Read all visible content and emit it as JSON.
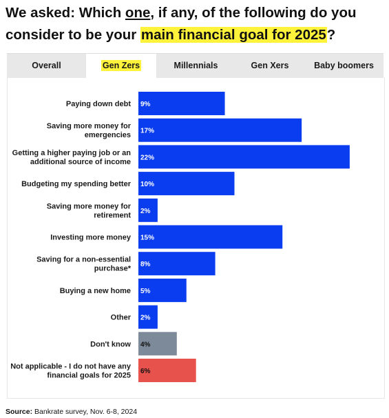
{
  "title": {
    "part1": "We asked: Which ",
    "underlined": "one",
    "part2": ", if any, of the following do you consider to be your ",
    "highlight": "main financial goal for 2025",
    "part3": "?"
  },
  "tabs": [
    {
      "label": "Overall",
      "active": false
    },
    {
      "label": "Gen Zers",
      "active": true
    },
    {
      "label": "Millennials",
      "active": false
    },
    {
      "label": "Gen Xers",
      "active": false
    },
    {
      "label": "Baby boomers",
      "active": false
    }
  ],
  "colors": {
    "bar_primary": "#0a3df0",
    "bar_dont_know": "#7d8a99",
    "bar_not_applicable": "#e8524c",
    "tab_highlight": "#fff23a"
  },
  "chart_data": {
    "type": "bar",
    "orientation": "horizontal",
    "categories": [
      [
        "Paying down debt"
      ],
      [
        "Saving more money for",
        "emergencies"
      ],
      [
        "Getting a higher paying job or an",
        "additional source of income"
      ],
      [
        "Budgeting my spending better"
      ],
      [
        "Saving more money for",
        "retirement"
      ],
      [
        "Investing more money"
      ],
      [
        "Saving for a non-essential",
        "purchase*"
      ],
      [
        "Buying a new home"
      ],
      [
        "Other"
      ],
      [
        "Don't know"
      ],
      [
        "Not applicable - I do not have any",
        "financial goals for 2025"
      ]
    ],
    "values": [
      9,
      17,
      22,
      10,
      2,
      15,
      8,
      5,
      2,
      4,
      6
    ],
    "value_labels": [
      "9%",
      "17%",
      "22%",
      "10%",
      "2%",
      "15%",
      "8%",
      "5%",
      "2%",
      "4%",
      "6%"
    ],
    "bar_colors": [
      "#0a3df0",
      "#0a3df0",
      "#0a3df0",
      "#0a3df0",
      "#0a3df0",
      "#0a3df0",
      "#0a3df0",
      "#0a3df0",
      "#0a3df0",
      "#7d8a99",
      "#e8524c"
    ],
    "label_colors": [
      "#ffffff",
      "#ffffff",
      "#ffffff",
      "#ffffff",
      "#ffffff",
      "#ffffff",
      "#ffffff",
      "#ffffff",
      "#ffffff",
      "#111111",
      "#111111"
    ],
    "xlim": [
      0,
      23
    ],
    "grid": false,
    "legend": "none"
  },
  "source": {
    "label": "Source:",
    "text": " Bankrate survey, Nov. 6-8, 2024"
  }
}
